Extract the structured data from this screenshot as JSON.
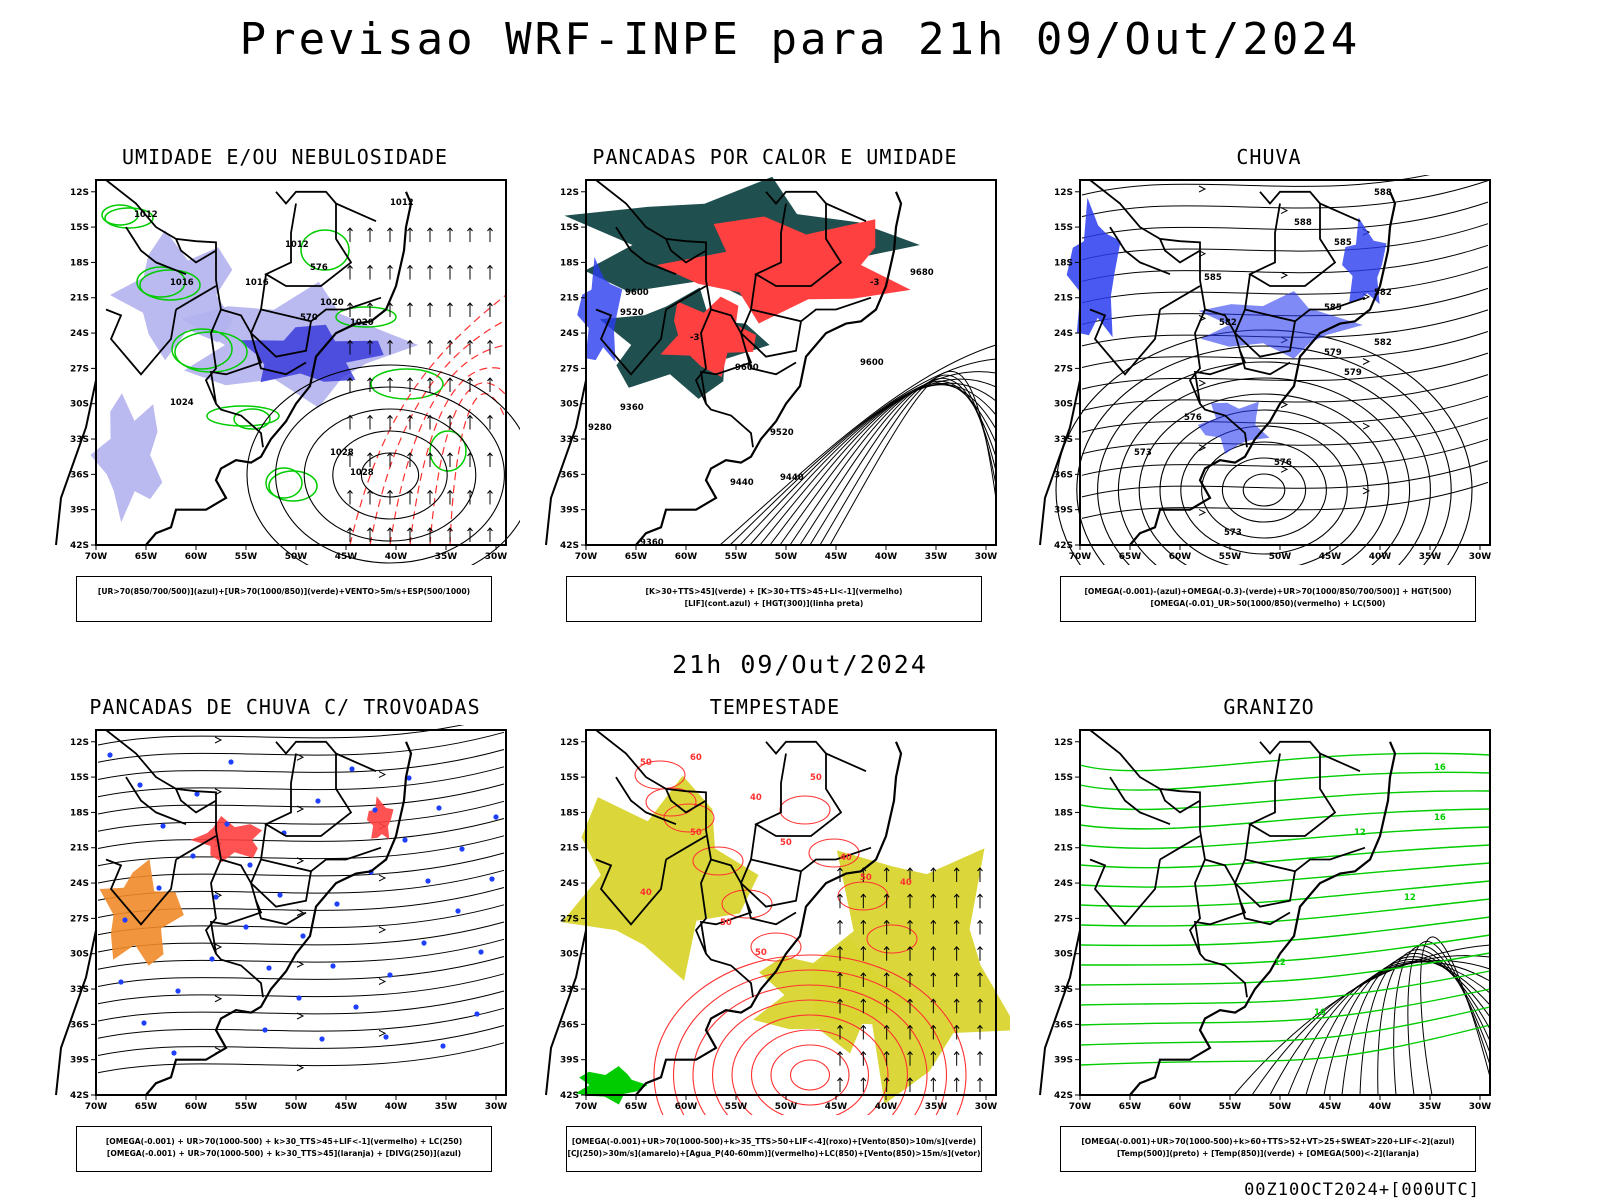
{
  "header": {
    "title": "Previsao WRF-INPE  para 21h 09/Out/2024"
  },
  "middle": {
    "subtitle": "21h 09/Out/2024"
  },
  "footer": {
    "run": "00Z10OCT2024+[000UTC]"
  },
  "axes": {
    "lat_ticks": [
      "12S",
      "15S",
      "18S",
      "21S",
      "24S",
      "27S",
      "30S",
      "33S",
      "36S",
      "39S",
      "42S"
    ],
    "lon_ticks": [
      "70W",
      "65W",
      "60W",
      "55W",
      "50W",
      "45W",
      "40W",
      "35W",
      "30W"
    ]
  },
  "panels": [
    {
      "title": "UMIDADE E/OU NEBULOSIDADE",
      "legend": [
        "[UR>70(850/700/500)](azul)+[UR>70(1000/850)](verde)+VENTO>5m/s+ESP(500/1000)"
      ],
      "labels": [
        "1012",
        "1012",
        "1012",
        "1016",
        "1016",
        "1020",
        "1020",
        "1024",
        "1028",
        "1028",
        "576",
        "570"
      ]
    },
    {
      "title": "PANCADAS POR CALOR E UMIDADE",
      "legend": [
        "[K>30+TTS>45](verde) + [K>30+TTS>45+LI<-1](vermelho)",
        "[LIF](cont.azul) + [HGT(300)](linha preta)"
      ],
      "labels": [
        "9680",
        "9600",
        "9600",
        "9600",
        "9520",
        "9520",
        "9440",
        "9440",
        "9360",
        "9360",
        "9280",
        "-3",
        "-3"
      ]
    },
    {
      "title": "CHUVA",
      "legend": [
        "[OMEGA(-0.001)-(azul)+OMEGA(-0.3)-(verde)+UR>70(1000/850/700/500)] + HGT(500)",
        "[OMEGA(-0.01)_UR>50(1000/850)(vermelho) + LC(500)"
      ],
      "labels": [
        "588",
        "588",
        "585",
        "585",
        "585",
        "582",
        "582",
        "579",
        "576",
        "576",
        "573",
        "573",
        "582",
        "579"
      ]
    },
    {
      "title": "PANCADAS DE CHUVA C/ TROVOADAS",
      "legend": [
        "[OMEGA(-0.001) + UR>70(1000-500) + k>30_TTS>45+LIF<-1](vermelho) + LC(250)",
        "[OMEGA(-0.001) + UR>70(1000-500) + k>30_TTS>45](laranja) + [DIVG(250)](azul)"
      ],
      "labels": []
    },
    {
      "title": "TEMPESTADE",
      "legend": [
        "[OMEGA(-0.001)+UR>70(1000-500)+k>35_TTS>50+LIF<-4](roxo)+[Vento(850)>10m/s](verde)",
        "[CJ(250)>30m/s](amarelo)+[Agua_P(40-60mm)](vermelho)+LC(850)+[Vento(850)>15m/s](vetor)"
      ],
      "labels": [
        "50",
        "50",
        "40",
        "50",
        "50",
        "40",
        "50",
        "40",
        "50",
        "40",
        "60",
        "50"
      ]
    },
    {
      "title": "GRANIZO",
      "legend": [
        "[OMEGA(-0.001)+UR>70(1000-500)+k>60+TTS>52+VT>25+SWEAT>220+LIF<-2](azul)",
        "[Temp(500)](preto) + [Temp(850)](verde) + [OMEGA(500)<-2](laranja)"
      ],
      "labels": [
        "16",
        "12",
        "12",
        "16",
        "16",
        "12"
      ]
    }
  ],
  "colors": {
    "blue_fill": "#b3b3ee",
    "blue_dark": "#3b3bdb",
    "green_line": "#00cc00",
    "red_line": "#ff3030",
    "red_fill": "#ff4040",
    "teal_fill": "#1f4f4f",
    "yellow_fill": "#d9d530",
    "orange": "#f08a2a",
    "blue_dot": "#1f3fff"
  }
}
